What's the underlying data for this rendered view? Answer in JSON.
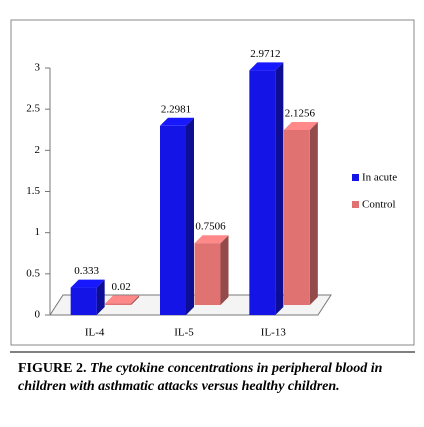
{
  "chart_data": {
    "type": "bar3d",
    "categories": [
      "IL-4",
      "IL-5",
      "IL-13"
    ],
    "series": [
      {
        "name": "In acute",
        "color": "#1414e6",
        "values": [
          0.333,
          2.2981,
          2.9712
        ]
      },
      {
        "name": "Control",
        "color": "#e07272",
        "values": [
          0.02,
          0.7506,
          2.1256
        ]
      }
    ],
    "ylim": [
      0,
      3
    ],
    "yticks": [
      0,
      0.5,
      1,
      1.5,
      2,
      2.5,
      3
    ]
  },
  "caption": {
    "label": "FIGURE 2.",
    "text": "The cytokine concentrations in peripheral blood in children with asthmatic attacks versus healthy children."
  }
}
